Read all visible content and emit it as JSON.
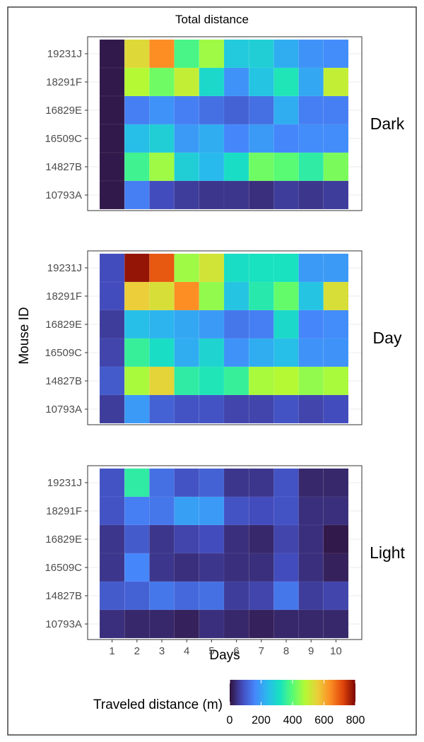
{
  "chart_data": {
    "type": "heatmap",
    "title": "Total distance",
    "xlabel": "Days",
    "ylabel": "Mouse ID",
    "x_categories": [
      "1",
      "2",
      "3",
      "4",
      "5",
      "6",
      "7",
      "8",
      "9",
      "10"
    ],
    "y_categories": [
      "10793A",
      "14827B",
      "16509C",
      "16829E",
      "18291F",
      "19231J"
    ],
    "colorbar": {
      "title": "Traveled distance (m)",
      "range": [
        0,
        800
      ],
      "ticks": [
        "0",
        "200",
        "400",
        "600",
        "800"
      ],
      "colormap": "turbo"
    },
    "facets": [
      {
        "name": "Dark",
        "values": {
          "19231J": [
            10,
            540,
            640,
            380,
            460,
            270,
            280,
            220,
            180,
            170
          ],
          "18291F": [
            10,
            480,
            420,
            500,
            300,
            180,
            260,
            330,
            210,
            500
          ],
          "16829E": [
            10,
            150,
            180,
            150,
            130,
            110,
            130,
            220,
            150,
            150
          ],
          "16509C": [
            10,
            250,
            280,
            190,
            220,
            160,
            190,
            160,
            170,
            170
          ],
          "14827B": [
            10,
            370,
            460,
            280,
            240,
            310,
            420,
            400,
            350,
            430
          ],
          "10793A": [
            10,
            150,
            80,
            60,
            50,
            50,
            40,
            60,
            50,
            60
          ]
        }
      },
      {
        "name": "Day",
        "values": {
          "19231J": [
            80,
            780,
            700,
            460,
            520,
            310,
            320,
            320,
            190,
            190
          ],
          "18291F": [
            80,
            560,
            530,
            640,
            450,
            260,
            340,
            410,
            260,
            530
          ],
          "16829E": [
            60,
            250,
            230,
            210,
            190,
            140,
            150,
            300,
            160,
            170
          ],
          "16509C": [
            70,
            360,
            310,
            220,
            290,
            180,
            220,
            250,
            180,
            180
          ],
          "14827B": [
            100,
            470,
            550,
            350,
            330,
            360,
            470,
            480,
            450,
            470
          ],
          "10793A": [
            60,
            190,
            110,
            90,
            90,
            70,
            70,
            90,
            70,
            80
          ]
        }
      },
      {
        "name": "Light",
        "values": {
          "19231J": [
            90,
            350,
            130,
            90,
            110,
            50,
            50,
            90,
            30,
            30
          ],
          "18291F": [
            90,
            150,
            140,
            200,
            190,
            90,
            80,
            90,
            40,
            40
          ],
          "16829E": [
            50,
            100,
            50,
            70,
            80,
            40,
            30,
            70,
            40,
            10
          ],
          "16509C": [
            50,
            160,
            50,
            40,
            50,
            40,
            40,
            80,
            40,
            20
          ],
          "14827B": [
            100,
            110,
            140,
            120,
            130,
            60,
            70,
            140,
            60,
            70
          ],
          "10793A": [
            40,
            30,
            30,
            20,
            40,
            30,
            20,
            30,
            30,
            30
          ]
        }
      }
    ]
  }
}
